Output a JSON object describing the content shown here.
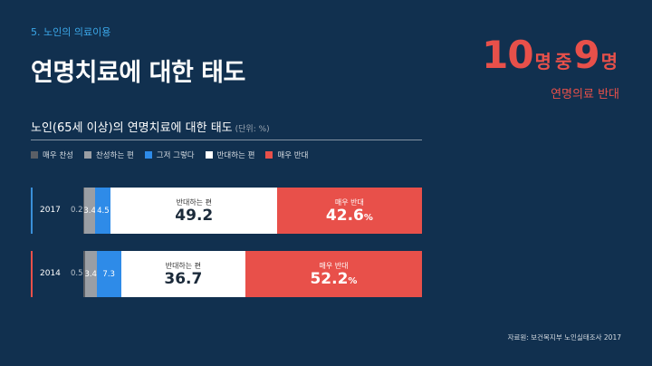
{
  "section_label": "5. 노인의 의료이용",
  "headline": "연명치료에 대한 태도",
  "highlight": {
    "num1": "10",
    "unit1": "명",
    "mid": "중",
    "num2": "9",
    "unit2": "명",
    "caption": "연명의료 반대"
  },
  "chart_title": "노인(65세 이상)의 연명치료에 대한 태도",
  "chart_unit": "(단위: %)",
  "source": "자료원: 보건복지부 노인실태조사 2017",
  "chart_data": {
    "type": "bar",
    "stacked": true,
    "orientation": "horizontal",
    "categories": [
      "2017",
      "2014"
    ],
    "series": [
      {
        "name": "매우 찬성",
        "color": "#5b5f66",
        "values": [
          0.2,
          0.5
        ]
      },
      {
        "name": "찬성하는 편",
        "color": "#9a9ea4",
        "values": [
          3.4,
          3.4
        ]
      },
      {
        "name": "그저 그렇다",
        "color": "#2e8be8",
        "values": [
          4.5,
          7.3
        ]
      },
      {
        "name": "반대하는 편",
        "color": "#ffffff",
        "values": [
          49.2,
          36.7
        ]
      },
      {
        "name": "매우 반대",
        "color": "#e8504a",
        "values": [
          42.6,
          52.2
        ]
      }
    ],
    "value_labels": {
      "2017": [
        "0.2",
        "3.4",
        "4.5",
        "49.2",
        "42.6"
      ],
      "2014": [
        "0.5",
        "3.4",
        "7.3",
        "36.7",
        "52.2"
      ]
    },
    "row_accent_colors": {
      "2017": "#3a8fd9",
      "2014": "#e8504a"
    },
    "percent_sign": "%",
    "xlim": [
      0,
      100
    ],
    "legend": "top-left",
    "grid": false
  }
}
